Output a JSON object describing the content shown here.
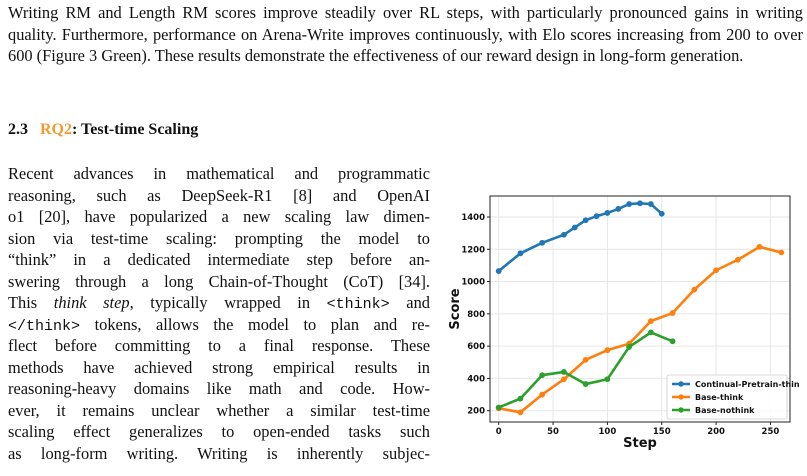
{
  "intro": {
    "lines": [
      "Writing RM and Length RM scores improve steadily over RL steps, with particularly pronounced",
      "gains in writing quality. Furthermore, performance on Arena-Write improves continuously, with Elo",
      "scores increasing from 200 to over 600 (Figure 3 Green). These results demonstrate the effectiveness",
      "of our reward design in long-form generation."
    ]
  },
  "section": {
    "number": "2.3",
    "ref": "RQ2",
    "title": ": Test-time Scaling"
  },
  "body": {
    "l1": "Recent advances in mathematical and programmatic",
    "l2": "reasoning, such as DeepSeek-R1 [8] and OpenAI",
    "l3": "o1 [20], have popularized a new scaling law dimen-",
    "l4": "sion via test-time scaling: prompting the model to",
    "l5": "“think” in a dedicated intermediate step before an-",
    "l6": "swering through a long Chain-of-Thought (CoT) [34].",
    "l7a": "This ",
    "l7b": "think step",
    "l7c": ", typically wrapped in ",
    "l7d": "<think>",
    "l7e": " and",
    "l8a": "</think>",
    "l8b": " tokens, allows the model to plan and re-",
    "l9": "flect before committing to a final response. These",
    "l10": "methods have achieved strong empirical results in",
    "l11": "reasoning-heavy domains like math and code. How-",
    "l12": "ever, it remains unclear whether a similar test-time",
    "l13": "scaling effect generalizes to open-ended tasks such",
    "l14": "as long-form writing. Writing is inherently subjec-"
  },
  "chart_data": {
    "type": "line",
    "xlabel": "Step",
    "ylabel": "Score",
    "xlim": [
      -8,
      268
    ],
    "ylim": [
      130,
      1530
    ],
    "xticks": [
      0,
      50,
      100,
      150,
      200,
      250
    ],
    "yticks": [
      200,
      400,
      600,
      800,
      1000,
      1200,
      1400
    ],
    "grid": true,
    "legend_position": "bottom-right",
    "series": [
      {
        "name": "Continual-Pretrain-think",
        "color": "#1f77b4",
        "x": [
          0,
          20,
          40,
          60,
          70,
          80,
          90,
          100,
          110,
          120,
          130,
          140,
          150
        ],
        "y": [
          1065,
          1175,
          1240,
          1290,
          1335,
          1380,
          1405,
          1425,
          1450,
          1480,
          1485,
          1480,
          1420
        ]
      },
      {
        "name": "Base-think",
        "color": "#ff7f0e",
        "x": [
          0,
          20,
          40,
          60,
          80,
          100,
          120,
          140,
          160,
          180,
          200,
          220,
          240,
          260
        ],
        "y": [
          215,
          190,
          300,
          395,
          515,
          575,
          615,
          755,
          805,
          950,
          1070,
          1135,
          1215,
          1180
        ]
      },
      {
        "name": "Base-nothink",
        "color": "#2ca02c",
        "x": [
          0,
          20,
          40,
          60,
          80,
          100,
          120,
          140,
          160
        ],
        "y": [
          220,
          275,
          420,
          440,
          365,
          395,
          595,
          685,
          630
        ]
      }
    ]
  }
}
